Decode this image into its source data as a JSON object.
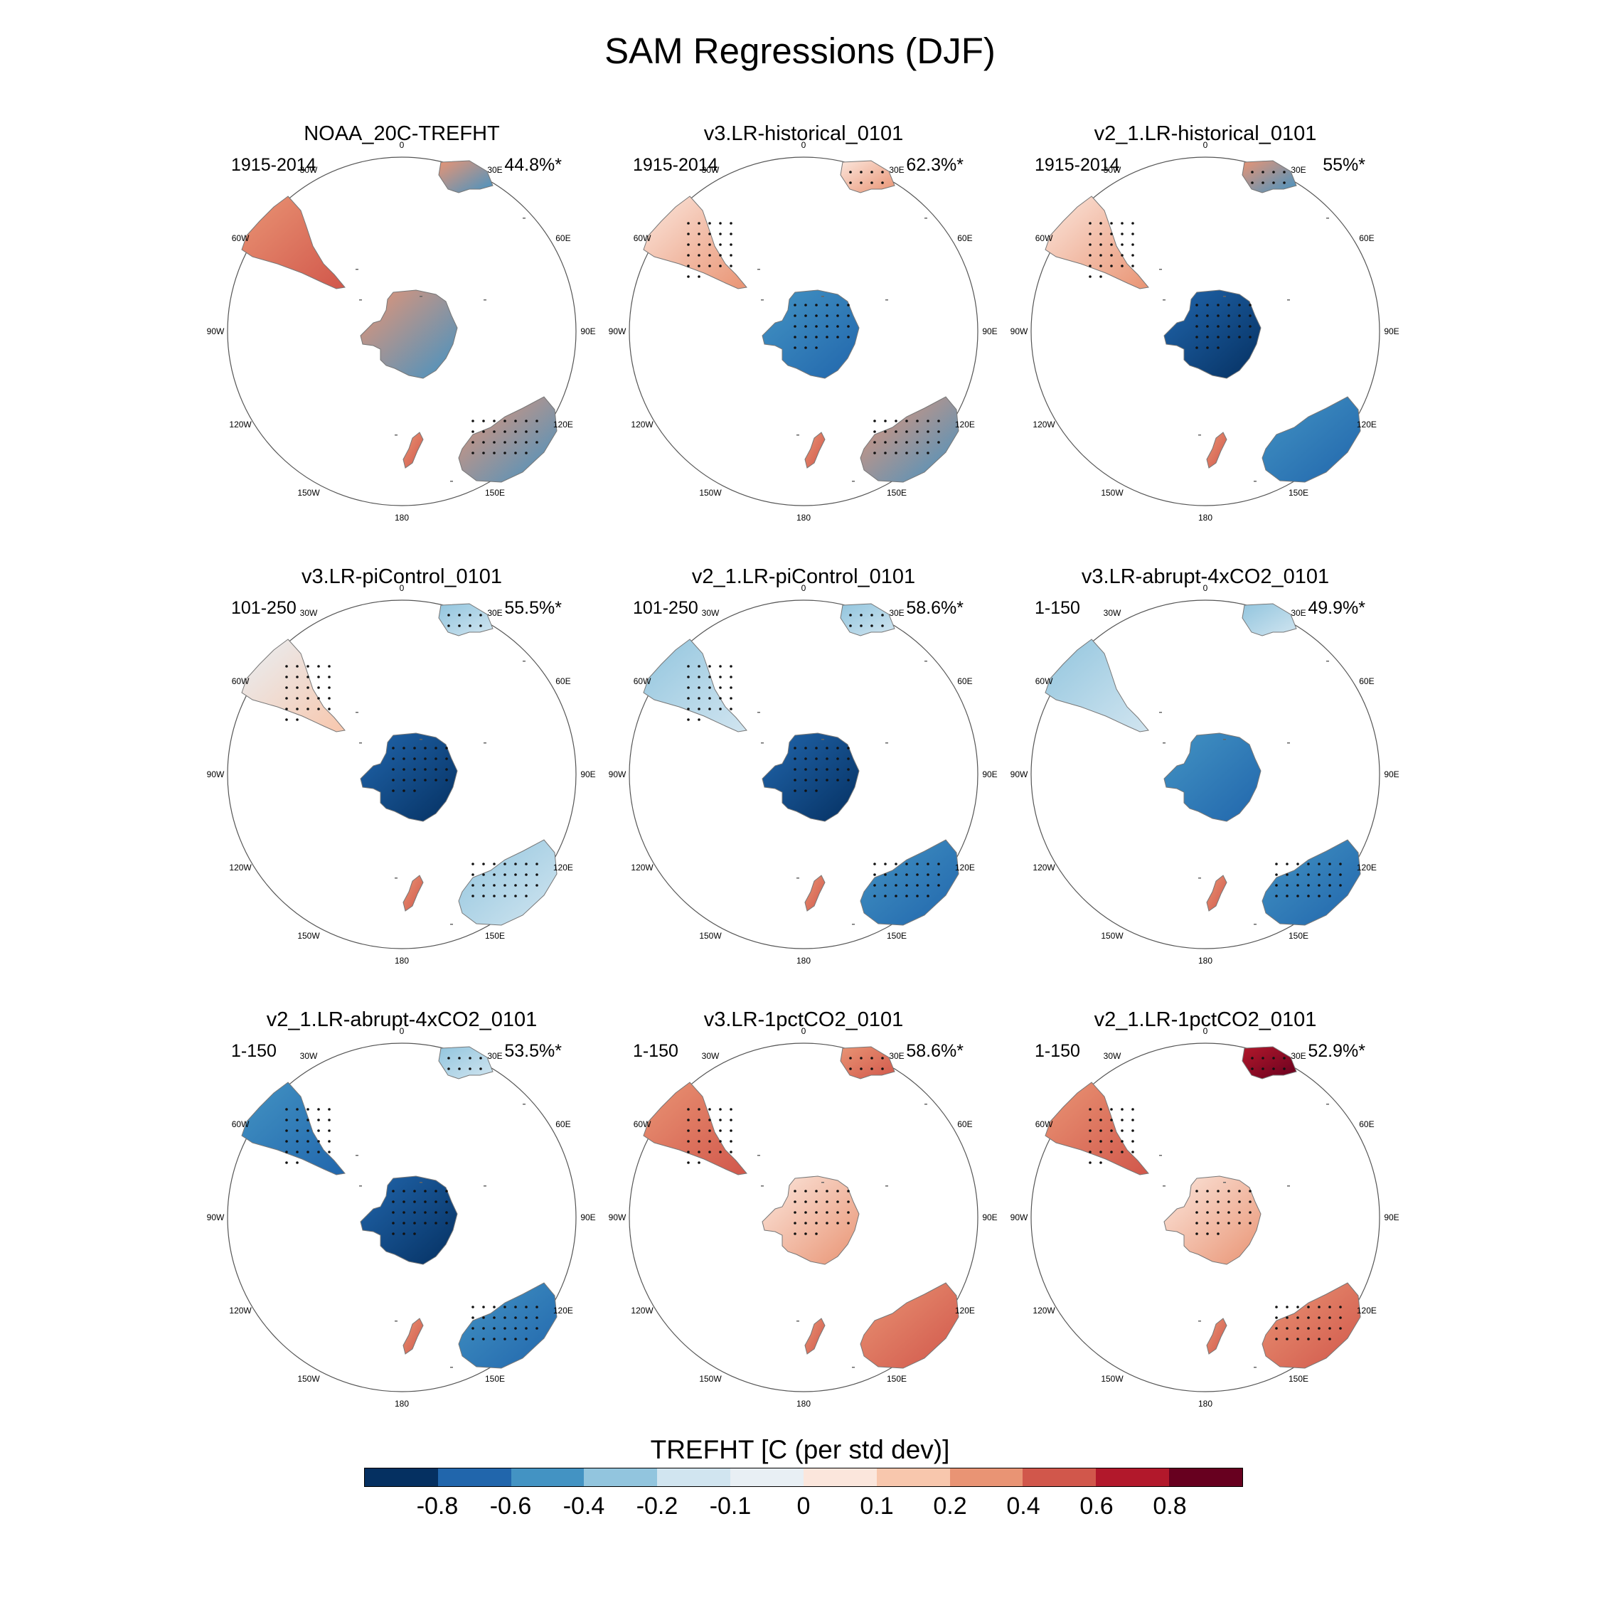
{
  "title": "SAM Regressions (DJF)",
  "lon_labels": [
    "0",
    "30E",
    "60E",
    "90E",
    "120E",
    "150E",
    "180",
    "150W",
    "120W",
    "90W",
    "60W",
    "30W"
  ],
  "panels": [
    {
      "title": "NOAA_20C-TREFHT",
      "period": "1915-2014",
      "variance": "44.8%*",
      "antarctica": "mixed",
      "africa": "mixed",
      "samerica": "warm",
      "australia": "mixed"
    },
    {
      "title": "v3.LR-historical_0101",
      "period": "1915-2014",
      "variance": "62.3%*",
      "antarctica": "cool",
      "africa": "warm-light",
      "samerica": "warm-light",
      "australia": "mixed"
    },
    {
      "title": "v2_1.LR-historical_0101",
      "period": "1915-2014",
      "variance": "55%*",
      "antarctica": "cool-strong",
      "africa": "mixed",
      "samerica": "warm-light",
      "australia": "cool"
    },
    {
      "title": "v3.LR-piControl_0101",
      "period": "101-250",
      "variance": "55.5%*",
      "antarctica": "cool-strong",
      "africa": "cool-light",
      "samerica": "neutral",
      "australia": "cool-light"
    },
    {
      "title": "v2_1.LR-piControl_0101",
      "period": "101-250",
      "variance": "58.6%*",
      "antarctica": "cool-strong",
      "africa": "cool-light",
      "samerica": "cool-light",
      "australia": "cool"
    },
    {
      "title": "v3.LR-abrupt-4xCO2_0101",
      "period": "1-150",
      "variance": "49.9%*",
      "antarctica": "cool",
      "africa": "cool-light",
      "samerica": "cool-light",
      "australia": "cool"
    },
    {
      "title": "v2_1.LR-abrupt-4xCO2_0101",
      "period": "1-150",
      "variance": "53.5%*",
      "antarctica": "cool-strong",
      "africa": "cool-light",
      "samerica": "cool",
      "australia": "cool"
    },
    {
      "title": "v3.LR-1pctCO2_0101",
      "period": "1-150",
      "variance": "58.6%*",
      "antarctica": "warm-light",
      "africa": "warm",
      "samerica": "warm",
      "australia": "warm"
    },
    {
      "title": "v2_1.LR-1pctCO2_0101",
      "period": "1-150",
      "variance": "52.9%*",
      "antarctica": "warm-light",
      "africa": "warm-strong",
      "samerica": "warm",
      "australia": "warm"
    }
  ],
  "colorbar": {
    "title": "TREFHT [C (per std dev)]",
    "colors": [
      "#053061",
      "#2166ac",
      "#4393c3",
      "#92c5de",
      "#d1e5f0",
      "#e8eff4",
      "#fbe6dc",
      "#f8c7ad",
      "#e99474",
      "#d1574b",
      "#b2182b",
      "#67001f"
    ],
    "ticks": [
      "-0.8",
      "-0.6",
      "-0.4",
      "-0.2",
      "-0.1",
      "0",
      "0.1",
      "0.2",
      "0.4",
      "0.6",
      "0.8"
    ]
  },
  "palette": {
    "cool-strong": [
      "#2166ac",
      "#053061"
    ],
    "cool": [
      "#4393c3",
      "#2166ac"
    ],
    "cool-light": [
      "#92c5de",
      "#d1e5f0"
    ],
    "neutral": [
      "#e8eff4",
      "#f8c7ad"
    ],
    "warm-light": [
      "#fbe6dc",
      "#e99474"
    ],
    "warm": [
      "#e99474",
      "#d1574b"
    ],
    "warm-strong": [
      "#b2182b",
      "#67001f"
    ],
    "mixed": [
      "#e99474",
      "#4393c3"
    ]
  }
}
